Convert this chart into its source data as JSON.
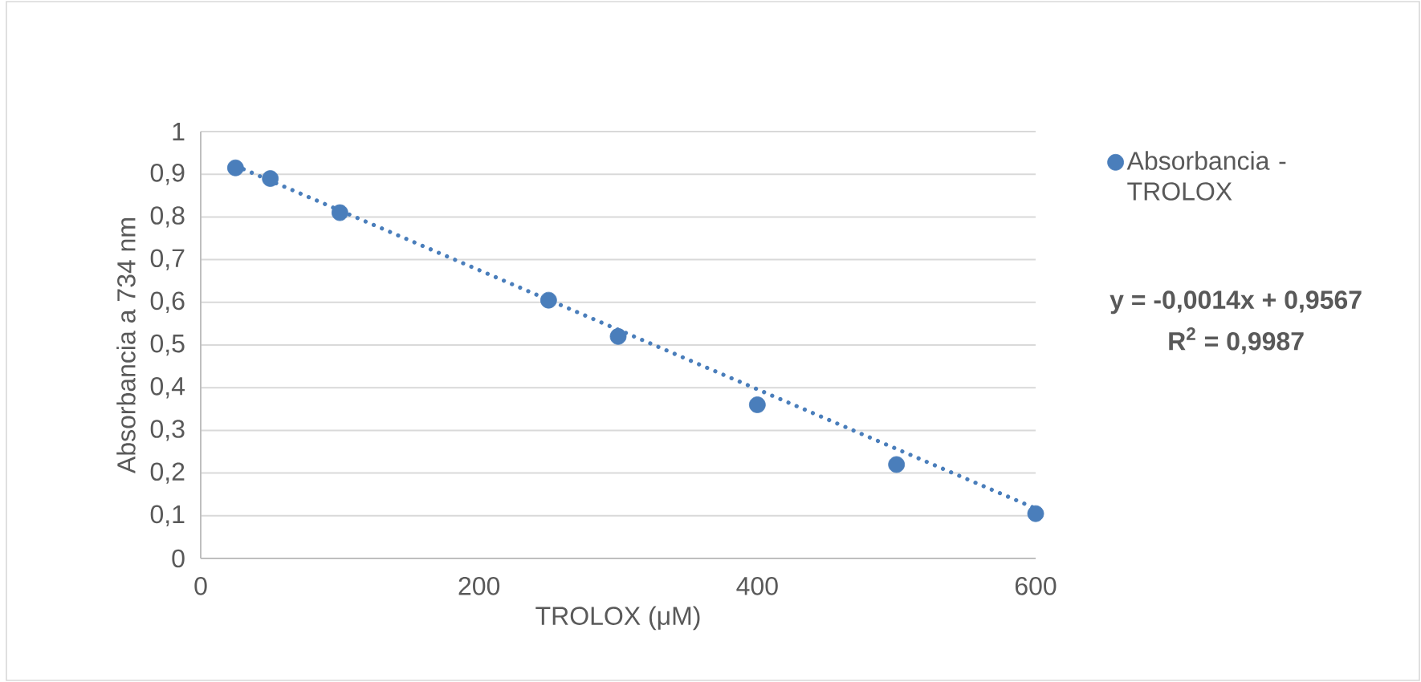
{
  "chart_data": {
    "type": "scatter",
    "xlabel": "TROLOX (μM)",
    "ylabel": "Absorbancia a 734 nm",
    "xlim": [
      0,
      600
    ],
    "xticks": [
      0,
      200,
      400,
      600
    ],
    "ylim": [
      0,
      1
    ],
    "yticks": [
      0,
      {
        "value": 0.1,
        "label": "0,1"
      },
      {
        "value": 0.2,
        "label": "0,2"
      },
      {
        "value": 0.3,
        "label": "0,3"
      },
      {
        "value": 0.4,
        "label": "0,4"
      },
      {
        "value": 0.5,
        "label": "0,5"
      },
      {
        "value": 0.6,
        "label": "0,6"
      },
      {
        "value": 0.7,
        "label": "0,7"
      },
      {
        "value": 0.8,
        "label": "0,8"
      },
      {
        "value": 0.9,
        "label": "0,9"
      },
      1
    ],
    "grid": "y",
    "legend": "right",
    "series": [
      {
        "name": "Absorbancia -TROLOX",
        "marker": "circle",
        "color": "#4a7ebb",
        "x": [
          25,
          50,
          100,
          250,
          300,
          400,
          500,
          600
        ],
        "values": [
          0.915,
          0.89,
          0.81,
          0.605,
          0.52,
          0.36,
          0.22,
          0.105
        ]
      },
      {
        "type": "line",
        "marker": "none",
        "line_style": "dotted",
        "color": "#4a7ebb",
        "x": [
          25,
          600
        ],
        "values": [
          0.92,
          0.117
        ]
      }
    ],
    "annotations": [
      "**y = -0,0014x + 0,9567**",
      "**R$^{2}$ = 0,9987**"
    ]
  }
}
